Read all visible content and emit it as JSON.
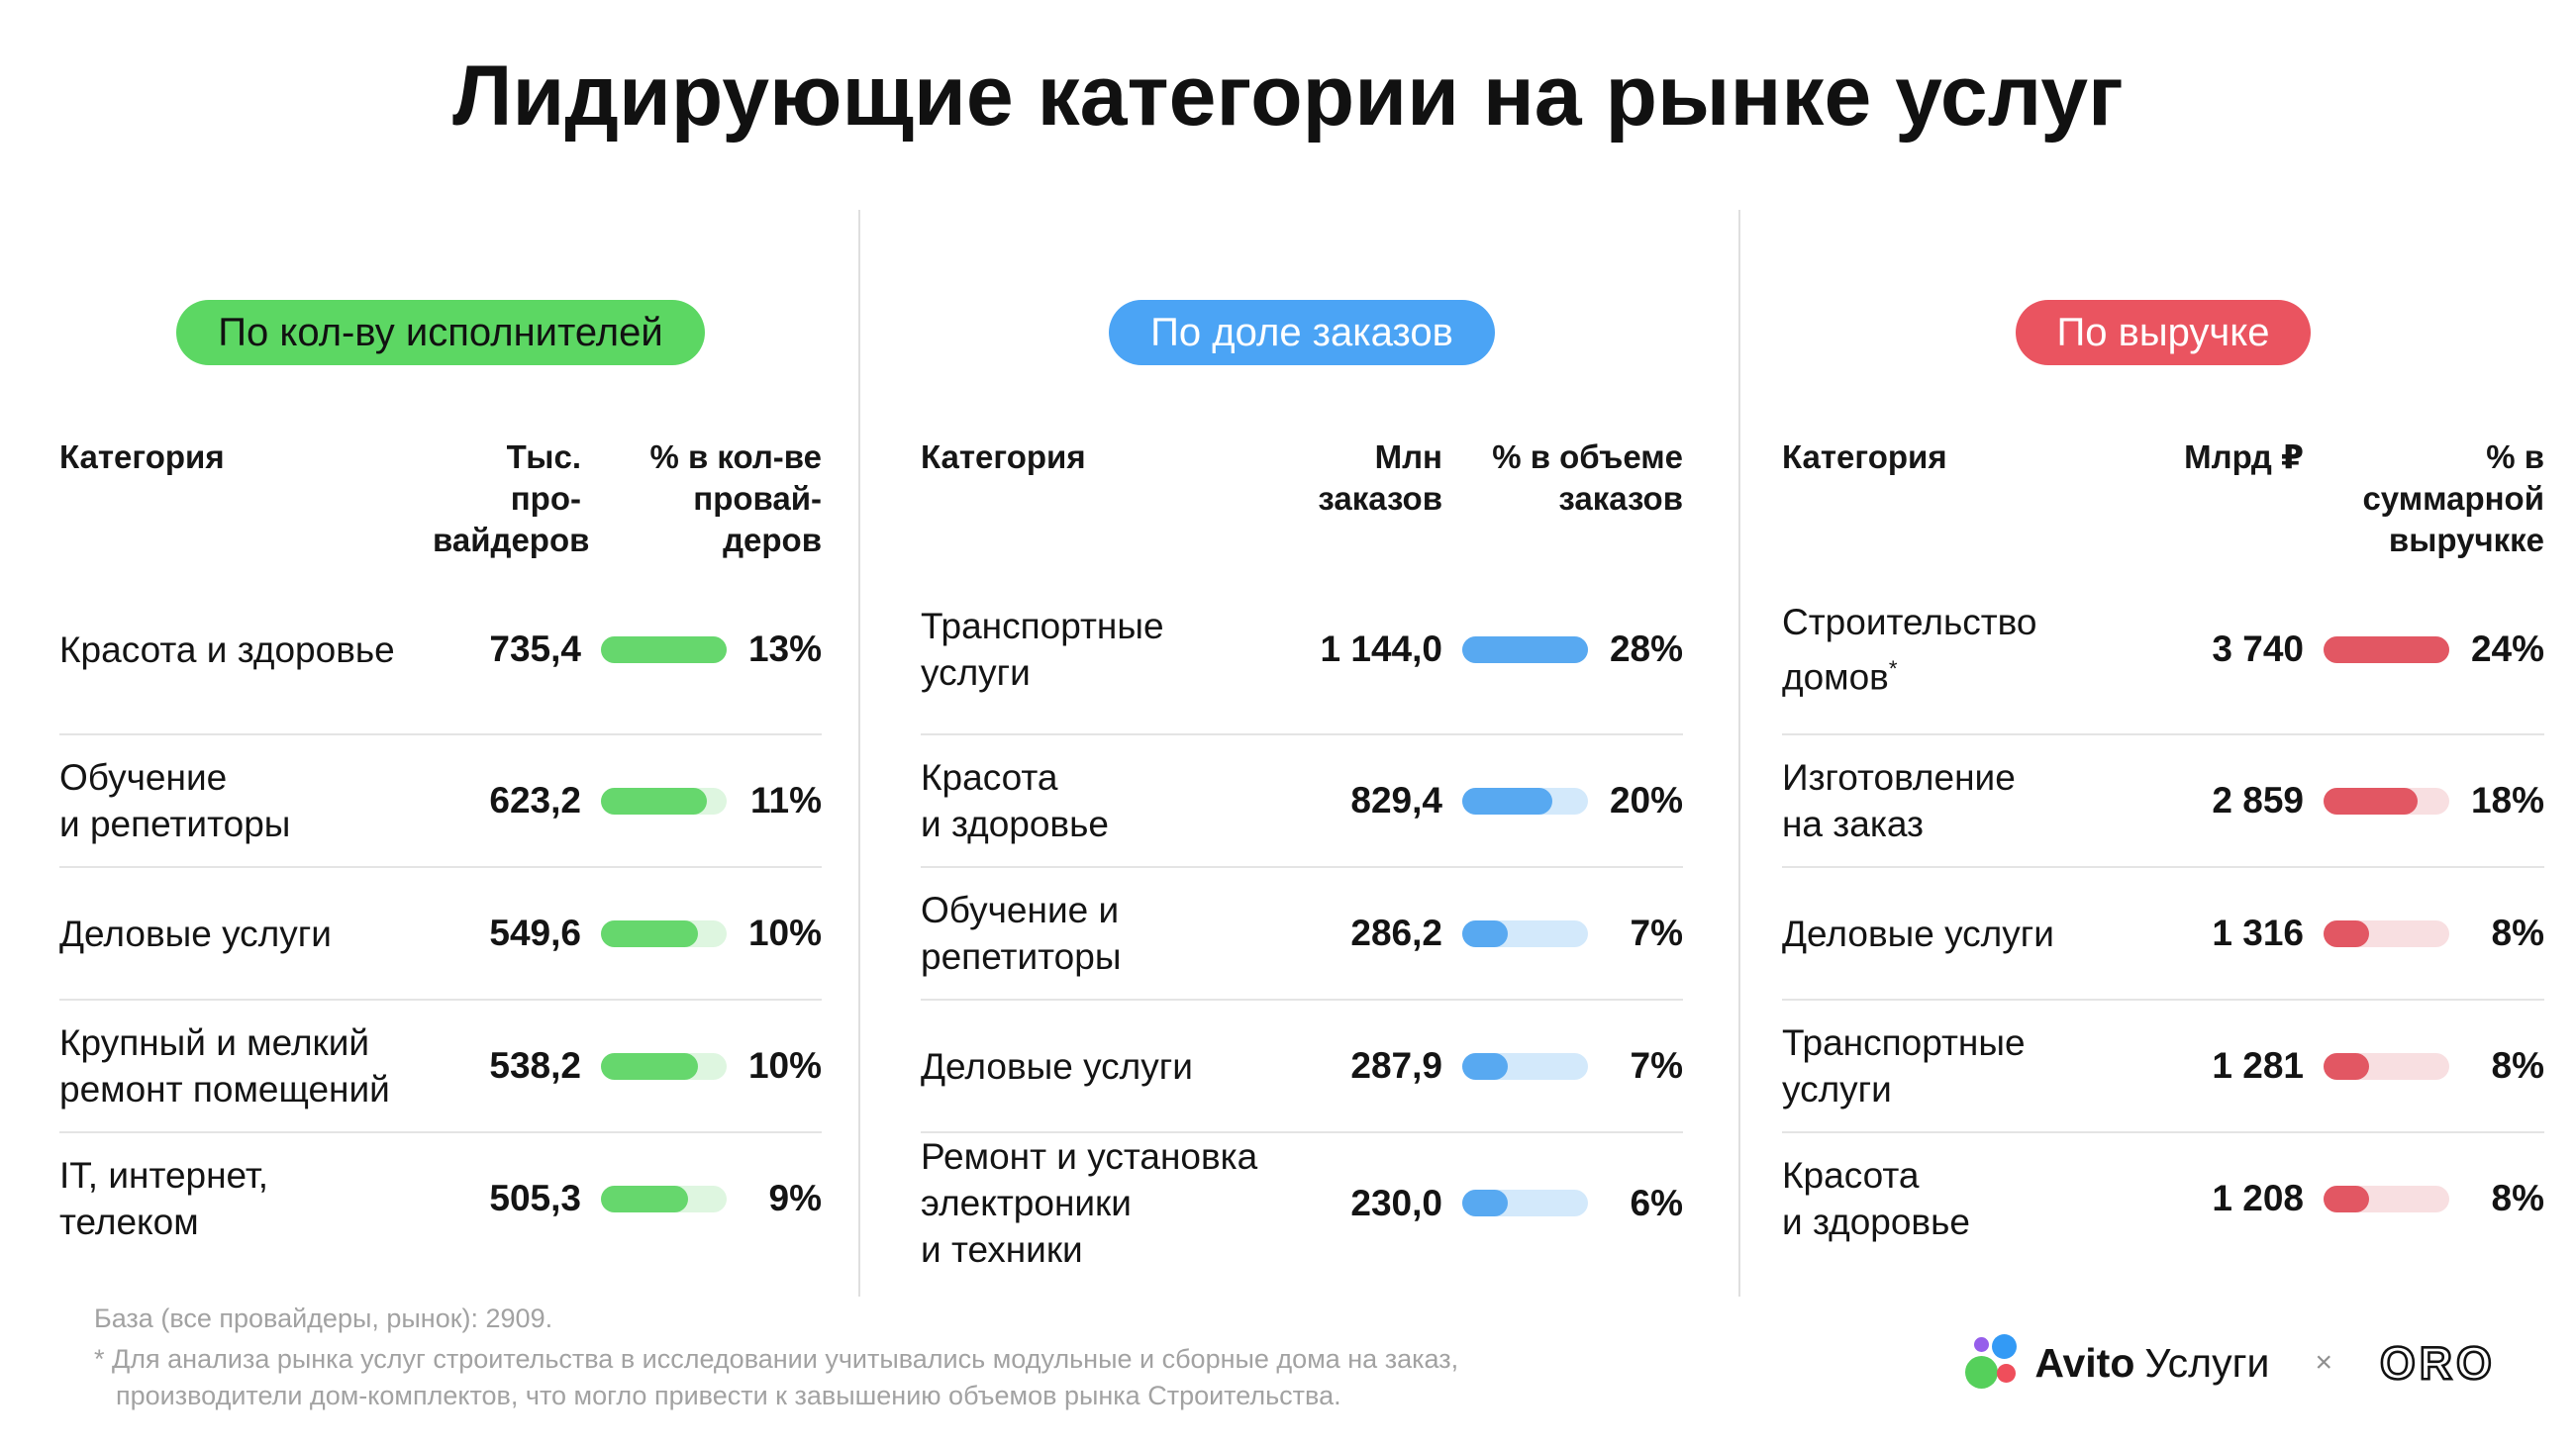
{
  "title": "Лидирующие категории на рынке услуг",
  "chart_data": [
    {
      "type": "table",
      "group_label": "По кол-ву исполнителей",
      "category_header": "Категория",
      "value_header": "Тыс. про-\nвайдеров",
      "percent_header": "% в кол-ве\nпровай-\nдеров",
      "max_percent": 13,
      "colors": {
        "pill_bg": "#5cd763",
        "pill_text": "#111111",
        "bar": "#66d76d",
        "track": "#def6e0"
      },
      "rows": [
        {
          "category": "Красота и здоровье",
          "value": "735,4",
          "percent": 13,
          "percent_label": "13%"
        },
        {
          "category": "Обучение\nи репетиторы",
          "value": "623,2",
          "percent": 11,
          "percent_label": "11%"
        },
        {
          "category": "Деловые услуги",
          "value": "549,6",
          "percent": 10,
          "percent_label": "10%"
        },
        {
          "category": "Крупный и мелкий\nремонт помещений",
          "value": "538,2",
          "percent": 10,
          "percent_label": "10%"
        },
        {
          "category": "IT, интернет,\nтелеком",
          "value": "505,3",
          "percent": 9,
          "percent_label": "9%"
        }
      ]
    },
    {
      "type": "table",
      "group_label": "По доле заказов",
      "category_header": "Категория",
      "value_header": "Млн\nзаказов",
      "percent_header": "% в объеме\nзаказов",
      "max_percent": 28,
      "colors": {
        "pill_bg": "#4ba4f5",
        "pill_text": "#ffffff",
        "bar": "#58a9f1",
        "track": "#d3e9fb"
      },
      "rows": [
        {
          "category": "Транспортные\nуслуги",
          "value": "1 144,0",
          "percent": 28,
          "percent_label": "28%"
        },
        {
          "category": "Красота\nи здоровье",
          "value": "829,4",
          "percent": 20,
          "percent_label": "20%"
        },
        {
          "category": "Обучение и\nрепетиторы",
          "value": "286,2",
          "percent": 7,
          "percent_label": "7%"
        },
        {
          "category": "Деловые услуги",
          "value": "287,9",
          "percent": 7,
          "percent_label": "7%"
        },
        {
          "category": "Ремонт и установка\nэлектроники\nи техники",
          "value": "230,0",
          "percent": 6,
          "percent_label": "6%"
        }
      ]
    },
    {
      "type": "table",
      "group_label": "По выручке",
      "category_header": "Категория",
      "value_header": "Млрд ₽",
      "percent_header": "% в\nсуммарной\nвыручкке",
      "max_percent": 24,
      "colors": {
        "pill_bg": "#ea5460",
        "pill_text": "#ffffff",
        "bar": "#e25763",
        "track": "#f8dfe1"
      },
      "rows": [
        {
          "category": "Строительство\nдомов*",
          "value": "3 740",
          "percent": 24,
          "percent_label": "24%"
        },
        {
          "category": "Изготовление\nна заказ",
          "value": "2 859",
          "percent": 18,
          "percent_label": "18%"
        },
        {
          "category": "Деловые услуги",
          "value": "1 316",
          "percent": 8,
          "percent_label": "8%"
        },
        {
          "category": "Транспортные\nуслуги",
          "value": "1 281",
          "percent": 8,
          "percent_label": "8%"
        },
        {
          "category": "Красота\nи здоровье",
          "value": "1 208",
          "percent": 8,
          "percent_label": "8%"
        }
      ]
    }
  ],
  "footer": {
    "base_note": "База (все провайдеры, рынок): 2909.",
    "footnote": "* Для анализа рынка услуг строительства в исследовании учитывались модульные и сборные дома на заказ,\nпроизводители дом-комплектов, что могло привести к завышению объемов рынка Строительства."
  },
  "branding": {
    "avito_bold": "Avito",
    "avito_regular": "Услуги",
    "separator": "×",
    "partner": "ORO",
    "logo_colors": {
      "purple": "#965eeb",
      "blue": "#339af5",
      "green": "#55d05b",
      "red": "#ef4e5b"
    }
  }
}
